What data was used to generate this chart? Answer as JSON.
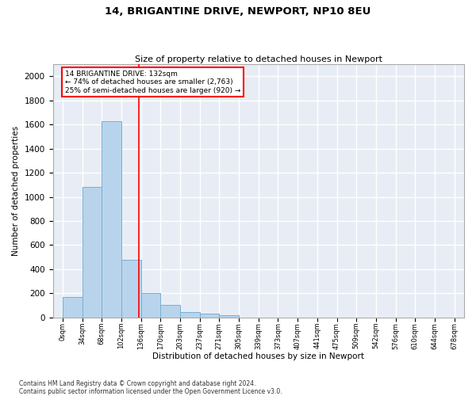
{
  "title": "14, BRIGANTINE DRIVE, NEWPORT, NP10 8EU",
  "subtitle": "Size of property relative to detached houses in Newport",
  "xlabel": "Distribution of detached houses by size in Newport",
  "ylabel": "Number of detached properties",
  "bar_values": [
    165,
    1085,
    1630,
    480,
    200,
    100,
    45,
    28,
    20,
    0,
    0,
    0,
    0,
    0,
    0,
    0,
    0,
    0,
    0,
    0
  ],
  "bar_labels": [
    "0sqm",
    "34sqm",
    "68sqm",
    "102sqm",
    "136sqm",
    "170sqm",
    "203sqm",
    "237sqm",
    "271sqm",
    "305sqm",
    "339sqm",
    "373sqm",
    "407sqm",
    "441sqm",
    "475sqm",
    "509sqm",
    "542sqm",
    "576sqm",
    "610sqm",
    "644sqm",
    "678sqm"
  ],
  "bar_color": "#b8d4ec",
  "bar_edge_color": "#7aafd4",
  "bg_color": "#e8edf5",
  "grid_color": "white",
  "property_sqm": 132,
  "bin_width": 34,
  "annotation_line1": "14 BRIGANTINE DRIVE: 132sqm",
  "annotation_line2": "← 74% of detached houses are smaller (2,763)",
  "annotation_line3": "25% of semi-detached houses are larger (920) →",
  "ylim": [
    0,
    2100
  ],
  "yticks": [
    0,
    200,
    400,
    600,
    800,
    1000,
    1200,
    1400,
    1600,
    1800,
    2000
  ],
  "footnote1": "Contains HM Land Registry data © Crown copyright and database right 2024.",
  "footnote2": "Contains public sector information licensed under the Open Government Licence v3.0."
}
